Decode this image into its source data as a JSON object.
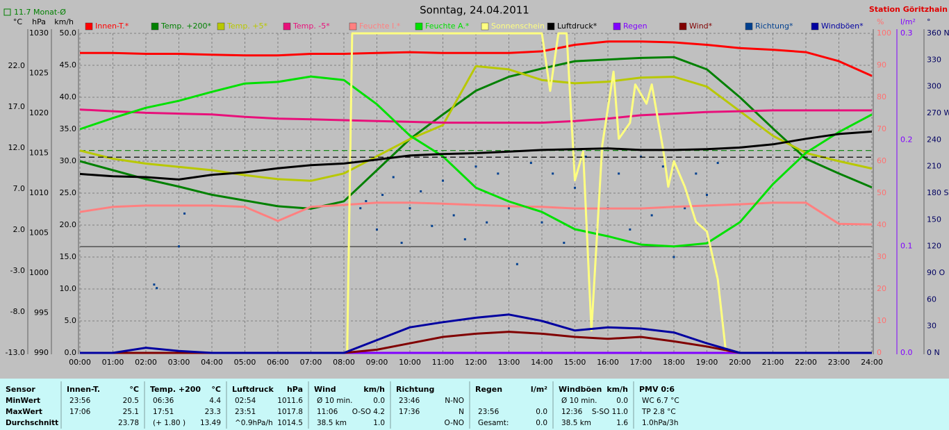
{
  "title": "Sonntag, 24.04.2011",
  "station": "Station Göritzhain",
  "chart_data": {
    "type": "line",
    "x": [
      0,
      1,
      2,
      3,
      4,
      5,
      6,
      7,
      8,
      9,
      10,
      11,
      12,
      13,
      14,
      15,
      16,
      17,
      18,
      19,
      20,
      21,
      22,
      23,
      24
    ],
    "xlim": [
      0,
      24
    ],
    "xticks": [
      {
        "value": 0,
        "label": "00:00"
      },
      {
        "value": 1,
        "label": "01:00"
      },
      {
        "value": 2,
        "label": "02:00"
      },
      {
        "value": 3,
        "label": "03:00"
      },
      {
        "value": 4,
        "label": "04:00"
      },
      {
        "value": 5,
        "label": "05:00"
      },
      {
        "value": 6,
        "label": "06:00"
      },
      {
        "value": 7,
        "label": "07:00"
      },
      {
        "value": 8,
        "label": "08:00"
      },
      {
        "value": 9,
        "label": "09:00"
      },
      {
        "value": 10,
        "label": "10:00"
      },
      {
        "value": 11,
        "label": "11:00"
      },
      {
        "value": 12,
        "label": "12:00"
      },
      {
        "value": 13,
        "label": "13:00"
      },
      {
        "value": 14,
        "label": "14:00"
      },
      {
        "value": 15,
        "label": "15:00"
      },
      {
        "value": 16,
        "label": "16:00"
      },
      {
        "value": 17,
        "label": "17:00"
      },
      {
        "value": 18,
        "label": "18:00"
      },
      {
        "value": 19,
        "label": "19:00"
      },
      {
        "value": 20,
        "label": "20:00"
      },
      {
        "value": 21,
        "label": "21:00"
      },
      {
        "value": 22,
        "label": "22:00"
      },
      {
        "value": 23,
        "label": "23:00"
      },
      {
        "value": 24,
        "label": "24:00"
      }
    ],
    "grid": true,
    "axes": [
      {
        "unit": "°C",
        "side": "left",
        "color": "#000000",
        "lim": [
          -13,
          26
        ],
        "ticks": [
          {
            "value": -13,
            "label": "-13.0"
          },
          {
            "value": -8,
            "label": "-8.0"
          },
          {
            "value": -3,
            "label": "-3.0"
          },
          {
            "value": 2,
            "label": "2.0"
          },
          {
            "value": 7,
            "label": "7.0"
          },
          {
            "value": 12,
            "label": "12.0"
          },
          {
            "value": 17,
            "label": "17.0"
          },
          {
            "value": 22,
            "label": "22.0"
          }
        ]
      },
      {
        "unit": "hPa",
        "side": "left",
        "color": "#000000",
        "lim": [
          990,
          1030
        ],
        "ticks": [
          990,
          995,
          1000,
          1005,
          1010,
          1015,
          1020,
          1025,
          1030
        ]
      },
      {
        "unit": "km/h",
        "side": "left",
        "color": "#000000",
        "grid": true,
        "lim": [
          0,
          50
        ],
        "ticks": [
          {
            "value": 0,
            "label": "0.0"
          },
          {
            "value": 5,
            "label": "5.0"
          },
          {
            "value": 10,
            "label": "10.0"
          },
          {
            "value": 15,
            "label": "15.0"
          },
          {
            "value": 20,
            "label": "20.0"
          },
          {
            "value": 25,
            "label": "25.0"
          },
          {
            "value": 30,
            "label": "30.0"
          },
          {
            "value": 35,
            "label": "35.0"
          },
          {
            "value": 40,
            "label": "40.0"
          },
          {
            "value": 45,
            "label": "45.0"
          },
          {
            "value": 50,
            "label": "50.0"
          }
        ]
      },
      {
        "unit": "%",
        "side": "right",
        "color": "#ff7070",
        "lim": [
          0,
          100
        ],
        "ticks": [
          0,
          10,
          20,
          30,
          40,
          50,
          60,
          70,
          80,
          90,
          100
        ]
      },
      {
        "unit": "l/m²",
        "side": "right",
        "color": "#8000ff",
        "lim": [
          0,
          0.3
        ],
        "ticks": [
          {
            "value": 0,
            "label": "0.0"
          },
          {
            "value": 0.1,
            "label": "0.1"
          },
          {
            "value": 0.2,
            "label": "0.2"
          },
          {
            "value": 0.3,
            "label": "0.3"
          }
        ]
      },
      {
        "unit": "°",
        "side": "right",
        "color": "#000060",
        "lim": [
          0,
          360
        ],
        "ticks": [
          {
            "value": 0,
            "label": "0 N"
          },
          30,
          60,
          {
            "value": 90,
            "label": "90 O"
          },
          120,
          150,
          {
            "value": 180,
            "label": "180 S"
          },
          210,
          240,
          {
            "value": 270,
            "label": "270 W"
          },
          300,
          330,
          {
            "value": 360,
            "label": "360 N"
          }
        ]
      }
    ],
    "monthly_mean": {
      "value": 11.7,
      "label": "11.7 Monat-Ø",
      "color": "#008000"
    },
    "series": [
      {
        "name": "Richtung*",
        "color": "#00408f",
        "axis": 5,
        "type": "scatter",
        "x": [
          2.25,
          2.33,
          3.0,
          3.17,
          8.5,
          8.67,
          9.0,
          9.17,
          9.5,
          9.75,
          10.0,
          10.33,
          10.67,
          11.0,
          11.33,
          11.67,
          12.0,
          12.33,
          12.67,
          13.0,
          13.25,
          13.67,
          14.0,
          14.33,
          14.67,
          15.0,
          15.33,
          15.67,
          16.0,
          16.33,
          16.67,
          17.0,
          17.33,
          17.67,
          18.0,
          18.33,
          18.67,
          19.0,
          19.33
        ],
        "values": [
          77,
          73,
          120,
          157,
          163,
          171,
          139,
          178,
          198,
          124,
          163,
          182,
          143,
          194,
          155,
          128,
          210,
          147,
          202,
          163,
          100,
          214,
          147,
          202,
          124,
          186,
          221,
          139,
          163,
          202,
          139,
          221,
          155,
          210,
          108,
          163,
          202,
          178,
          214
        ]
      },
      {
        "name": "Innen-T.*",
        "color": "#ff0000",
        "axis": 0,
        "values": [
          23.6,
          23.6,
          23.5,
          23.5,
          23.4,
          23.3,
          23.3,
          23.5,
          23.5,
          23.6,
          23.7,
          23.6,
          23.6,
          23.6,
          23.8,
          24.6,
          25.0,
          25.0,
          24.9,
          24.6,
          24.2,
          24.0,
          23.7,
          22.6,
          20.8
        ]
      },
      {
        "name": "Temp. +200*",
        "color": "#008000",
        "axis": 0,
        "values": [
          10.4,
          9.3,
          8.2,
          7.3,
          6.3,
          5.6,
          4.9,
          4.6,
          5.5,
          9.3,
          13.1,
          16.1,
          19.0,
          20.7,
          21.7,
          22.6,
          22.8,
          23.0,
          23.1,
          21.6,
          18.2,
          14.4,
          10.7,
          8.9,
          7.2
        ]
      },
      {
        "name": "Temp. +5*",
        "color": "#b8c800",
        "axis": 0,
        "values": [
          11.7,
          10.7,
          10.1,
          9.7,
          9.3,
          8.7,
          8.2,
          8.0,
          8.9,
          11.0,
          13.1,
          14.8,
          22.0,
          21.6,
          20.3,
          19.9,
          20.1,
          20.6,
          20.7,
          19.5,
          16.5,
          13.5,
          11.4,
          10.4,
          9.5
        ]
      },
      {
        "name": "Temp. -5*",
        "color": "#e8107a",
        "axis": 0,
        "values": [
          16.7,
          16.5,
          16.3,
          16.2,
          16.1,
          15.8,
          15.6,
          15.5,
          15.4,
          15.3,
          15.2,
          15.1,
          15.1,
          15.1,
          15.1,
          15.3,
          15.6,
          16.0,
          16.2,
          16.4,
          16.5,
          16.6,
          16.6,
          16.6,
          16.6
        ]
      },
      {
        "name": "Feuchte I.*",
        "color": "#ff8080",
        "axis": 3,
        "values": [
          44.1,
          45.7,
          46.1,
          46.1,
          46.1,
          45.7,
          41.3,
          45.7,
          46.3,
          47.0,
          47.0,
          46.7,
          46.3,
          45.9,
          45.7,
          45.2,
          45.2,
          45.2,
          45.7,
          46.1,
          46.5,
          47.0,
          47.0,
          40.4,
          40.2
        ]
      },
      {
        "name": "Feuchte A.*",
        "color": "#00e000",
        "axis": 3,
        "values": [
          70.0,
          73.5,
          76.7,
          78.9,
          81.7,
          84.3,
          84.8,
          86.5,
          85.4,
          77.8,
          68.0,
          61.5,
          51.7,
          47.4,
          44.1,
          38.7,
          36.5,
          33.9,
          33.3,
          34.3,
          40.9,
          52.8,
          62.6,
          69.1,
          74.6
        ]
      },
      {
        "name": "Sonnenschein",
        "color": "#ffff80",
        "axis": 3,
        "x": [
          0,
          8.1,
          8.25,
          14.0,
          14.25,
          14.5,
          14.75,
          15.0,
          15.25,
          15.5,
          15.83,
          16.17,
          16.33,
          16.67,
          16.83,
          17.17,
          17.33,
          17.67,
          17.83,
          18.0,
          18.33,
          18.67,
          19.0,
          19.33,
          19.58,
          24
        ],
        "values": [
          0,
          0,
          100,
          100,
          82,
          100,
          100,
          54,
          63,
          7,
          65,
          88,
          67,
          72,
          84,
          78,
          84,
          64,
          52,
          60,
          52,
          41,
          38,
          23,
          0,
          0
        ]
      },
      {
        "name": "Luftdruck*",
        "color": "#000000",
        "axis": 1,
        "mean": 1014.5,
        "values": [
          1012.4,
          1012.1,
          1012.0,
          1011.7,
          1012.3,
          1012.6,
          1013.1,
          1013.5,
          1013.7,
          1014.2,
          1014.7,
          1014.9,
          1015.0,
          1015.2,
          1015.4,
          1015.5,
          1015.6,
          1015.4,
          1015.4,
          1015.5,
          1015.7,
          1016.1,
          1016.8,
          1017.4,
          1017.7
        ]
      },
      {
        "name": "Regen",
        "color": "#8000ff",
        "axis": 4,
        "values": [
          0,
          0,
          0,
          0,
          0,
          0,
          0,
          0,
          0,
          0,
          0,
          0,
          0,
          0,
          0,
          0,
          0,
          0,
          0,
          0,
          0,
          0,
          0,
          0,
          0
        ]
      },
      {
        "name": "Wind*",
        "color": "#800000",
        "axis": 2,
        "values": [
          0,
          0,
          0,
          0,
          0,
          0,
          0,
          0,
          0,
          0.5,
          1.5,
          2.5,
          3.0,
          3.3,
          3.0,
          2.5,
          2.2,
          2.5,
          1.8,
          1.0,
          0,
          0,
          0,
          0,
          0
        ]
      },
      {
        "name": "Windböen*",
        "color": "#0000a0",
        "axis": 2,
        "values": [
          0,
          0,
          0.8,
          0.3,
          0,
          0,
          0,
          0,
          0,
          2.0,
          4.0,
          4.8,
          5.5,
          6.0,
          5.0,
          3.5,
          4.0,
          3.8,
          3.2,
          1.5,
          0,
          0,
          0,
          0,
          0
        ]
      }
    ]
  },
  "table": {
    "columns": [
      {
        "header": "Sensor",
        "rows": [
          [
            "MinWert"
          ],
          [
            "MaxWert"
          ],
          [
            "Durchschnitt"
          ]
        ]
      },
      {
        "header": "Innen-T.",
        "unit": "°C",
        "rows": [
          [
            "23:56",
            "20.5"
          ],
          [
            "17:06",
            "25.1"
          ],
          [
            null,
            "23.78"
          ]
        ]
      },
      {
        "header": "Temp. +200",
        "unit": "°C",
        "rows": [
          [
            "06:36",
            "4.4"
          ],
          [
            "17:51",
            "23.3"
          ],
          [
            "(+ 1.80 )",
            "13.49"
          ]
        ]
      },
      {
        "header": "Luftdruck",
        "unit": "hPa",
        "rows": [
          [
            "02:54",
            "1011.6"
          ],
          [
            "23:51",
            "1017.8"
          ],
          [
            "^0.9hPa/h",
            "1014.5"
          ]
        ]
      },
      {
        "header": "Wind",
        "unit": "km/h",
        "rows": [
          [
            "Ø 10 min.",
            "0.0"
          ],
          [
            "11:06",
            "O-SO 4.2"
          ],
          [
            "38.5 km",
            "1.0"
          ]
        ]
      },
      {
        "header": "Richtung",
        "rows": [
          [
            "23:46",
            "N-NO"
          ],
          [
            "17:36",
            "N"
          ],
          [
            null,
            "O-NO"
          ]
        ]
      },
      {
        "header": "Regen",
        "unit": "l/m²",
        "rows": [
          [
            null,
            null
          ],
          [
            "23:56",
            "0.0"
          ],
          [
            "Gesamt:",
            "0.0"
          ]
        ]
      },
      {
        "header": "Windböen",
        "unit": "km/h",
        "rows": [
          [
            "Ø 10 min.",
            "0.0"
          ],
          [
            "12:36",
            "S-SO 11.0"
          ],
          [
            "38.5 km",
            "1.6"
          ]
        ]
      },
      {
        "header": "PMV 0:6",
        "rows": [
          [
            "WC 6.7 °C"
          ],
          [
            "TP 2.8 °C"
          ],
          [
            "1.0hPa/3h"
          ]
        ]
      }
    ]
  }
}
